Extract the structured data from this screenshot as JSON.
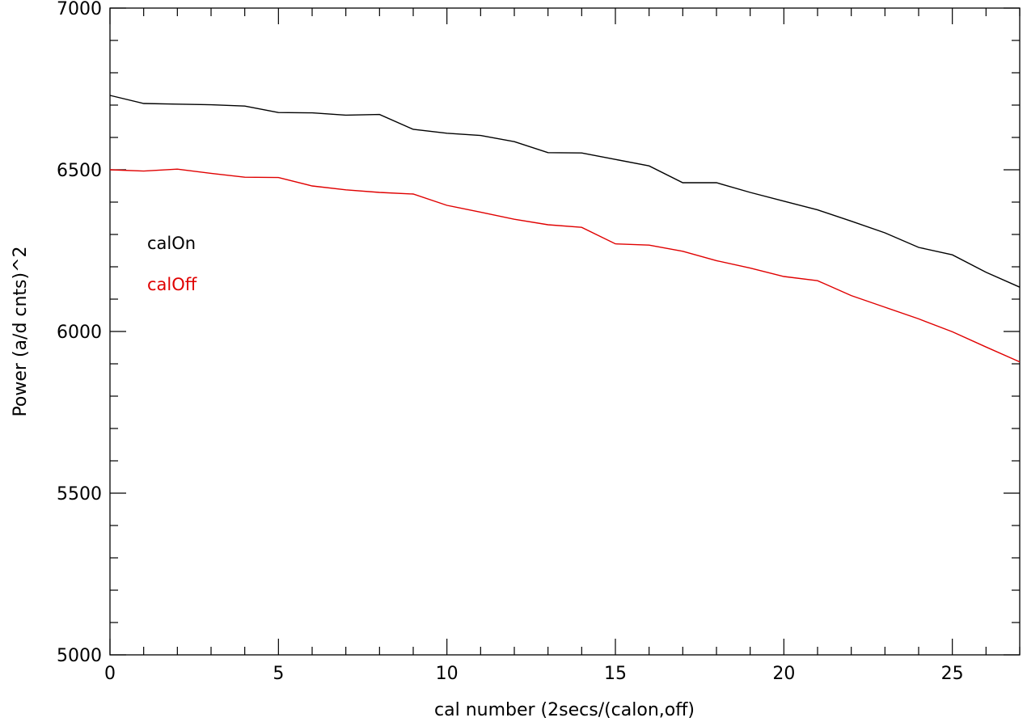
{
  "chart_data": {
    "type": "line",
    "title": "",
    "xlabel": "cal number (2secs/(calon,off)",
    "ylabel": "Power (a/d cnts)^2",
    "xlim": [
      0,
      27
    ],
    "ylim": [
      5000,
      7000
    ],
    "x_ticks": [
      0,
      5,
      10,
      15,
      20,
      25
    ],
    "y_ticks": [
      5000,
      5500,
      6000,
      6500,
      7000
    ],
    "x_tick_labels": [
      "0",
      "5",
      "10",
      "15",
      "20",
      "25"
    ],
    "y_tick_labels": [
      "5000",
      "5500",
      "6000",
      "6500",
      "7000"
    ],
    "grid": false,
    "legend_placement": "upper-left inside",
    "x": [
      0,
      1,
      2,
      3,
      4,
      5,
      6,
      7,
      8,
      9,
      10,
      11,
      12,
      13,
      14,
      15,
      16,
      17,
      18,
      19,
      20,
      21,
      22,
      23,
      24,
      25,
      26,
      27
    ],
    "series": [
      {
        "name": "calOn",
        "color": "#000000",
        "values": [
          6730,
          6705,
          6703,
          6701,
          6697,
          6677,
          6676,
          6669,
          6671,
          6625,
          6613,
          6606,
          6587,
          6553,
          6552,
          6532,
          6512,
          6460,
          6460,
          6430,
          6403,
          6376,
          6341,
          6305,
          6260,
          6237,
          6183,
          6137
        ]
      },
      {
        "name": "calOff",
        "color": "#e00000",
        "values": [
          6500,
          6496,
          6502,
          6489,
          6477,
          6476,
          6450,
          6438,
          6430,
          6425,
          6390,
          6369,
          6347,
          6330,
          6322,
          6271,
          6267,
          6248,
          6219,
          6196,
          6170,
          6157,
          6111,
          6075,
          6039,
          5999,
          5952,
          5906
        ]
      }
    ]
  }
}
